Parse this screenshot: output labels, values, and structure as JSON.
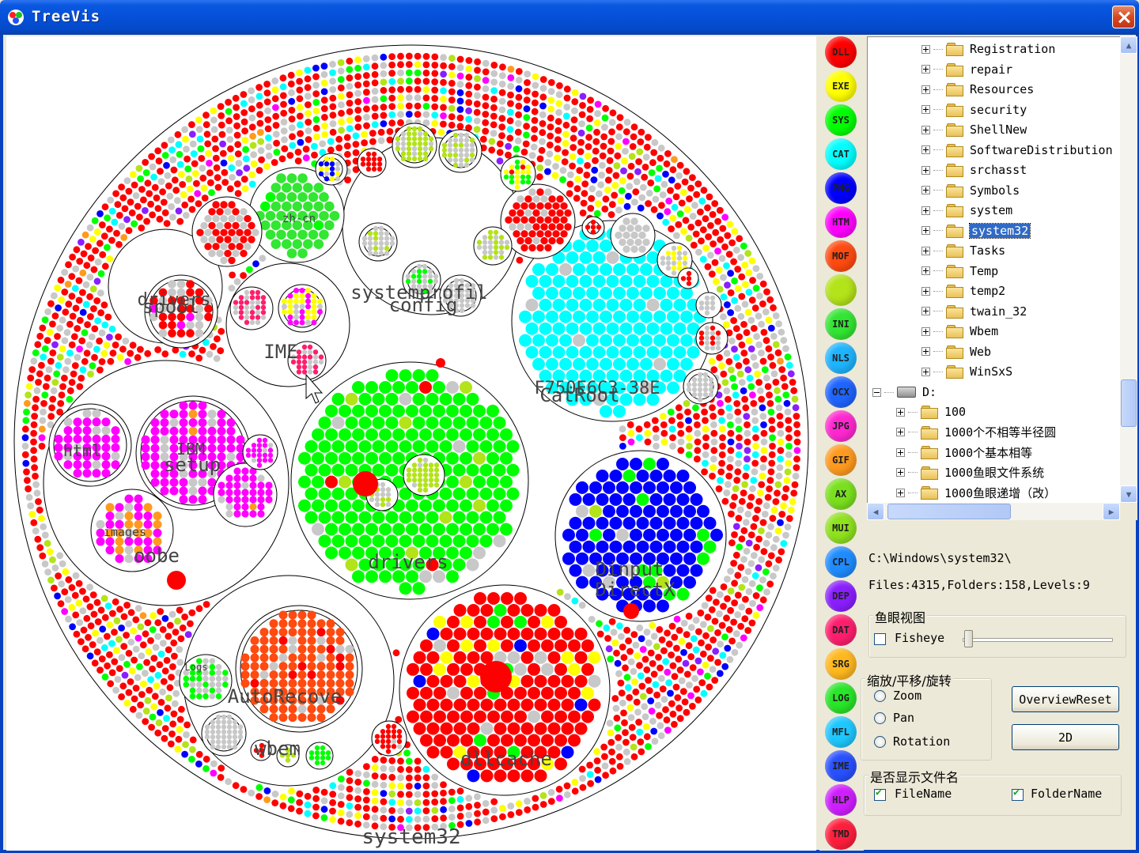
{
  "window": {
    "title": "TreeVis"
  },
  "legend": [
    {
      "label": "DLL",
      "color": "#ff0000"
    },
    {
      "label": "EXE",
      "color": "#ffff00"
    },
    {
      "label": "SYS",
      "color": "#00ff00"
    },
    {
      "label": "CAT",
      "color": "#00ffff"
    },
    {
      "label": "PNG",
      "color": "#0000ff"
    },
    {
      "label": "HTM",
      "color": "#ff00ff"
    },
    {
      "label": "MOF",
      "color": "#ff4a10"
    },
    {
      "label": "",
      "color": "#b3e319"
    },
    {
      "label": "INI",
      "color": "#32e632"
    },
    {
      "label": "NLS",
      "color": "#1eb4ff"
    },
    {
      "label": "OCX",
      "color": "#1e64ff"
    },
    {
      "label": "JPG",
      "color": "#ff28d0"
    },
    {
      "label": "GIF",
      "color": "#ff9a1e"
    },
    {
      "label": "AX",
      "color": "#7ae01e"
    },
    {
      "label": "MUI",
      "color": "#8fe21e"
    },
    {
      "label": "CPL",
      "color": "#1e8cff"
    },
    {
      "label": "DEP",
      "color": "#8a1eff"
    },
    {
      "label": "DAT",
      "color": "#ff1e6e"
    },
    {
      "label": "SRG",
      "color": "#ffb81e"
    },
    {
      "label": "LOG",
      "color": "#28e628"
    },
    {
      "label": "MFL",
      "color": "#1ec8ff"
    },
    {
      "label": "IME",
      "color": "#2850ff"
    },
    {
      "label": "HLP",
      "color": "#d01eff"
    },
    {
      "label": "TMD",
      "color": "#ff1e3c"
    }
  ],
  "tree": {
    "windows_items": [
      "Registration",
      "repair",
      "Resources",
      "security",
      "ShellNew",
      "SoftwareDistribution",
      "srchasst",
      "Symbols",
      "system",
      "system32",
      "Tasks",
      "Temp",
      "temp2",
      "twain_32",
      "Wbem",
      "Web",
      "WinSxS"
    ],
    "selected": "system32",
    "drive": "D:",
    "drive_items": [
      "100",
      "1000个不相等半径圆",
      "1000个基本相等",
      "1000鱼眼文件系统",
      "1000鱼眼递增（改）"
    ]
  },
  "info": {
    "path": "C:\\Windows\\system32\\",
    "stats": "Files:4315,Folders:158,Levels:9"
  },
  "fisheye": {
    "title": "鱼眼视图",
    "checkbox_label": "Fisheye",
    "checked": false
  },
  "transform": {
    "title": "缩放/平移/旋转",
    "options": [
      "Zoom",
      "Pan",
      "Rotation"
    ],
    "overview_reset": "OverviewReset",
    "mode_2d": "2D"
  },
  "filename_group": {
    "title": "是否显示文件名",
    "file_label": "FileName",
    "folder_label": "FolderName",
    "file_checked": true,
    "folder_checked": true
  },
  "viz": {
    "root_label": "system32",
    "folder_labels": {
      "drivers_big": "drivers",
      "oobe": "oobe",
      "dllcache": "dllcache",
      "wbem": "wbem",
      "autorecover": "AutoRecove",
      "directx": "DirectX",
      "dinput": "Dinput",
      "catroot": "CatRoot",
      "catroot_guid": "F750E6C3-38E",
      "config": "config",
      "systemprofile": "systemprofil",
      "ime": "IME",
      "spool": "spool",
      "drivers_small": "drivers",
      "setup": "setup",
      "ibm": "IBM",
      "html": "html",
      "images": "images",
      "zhcn": "zh-cn",
      "logs": "Logs"
    }
  }
}
